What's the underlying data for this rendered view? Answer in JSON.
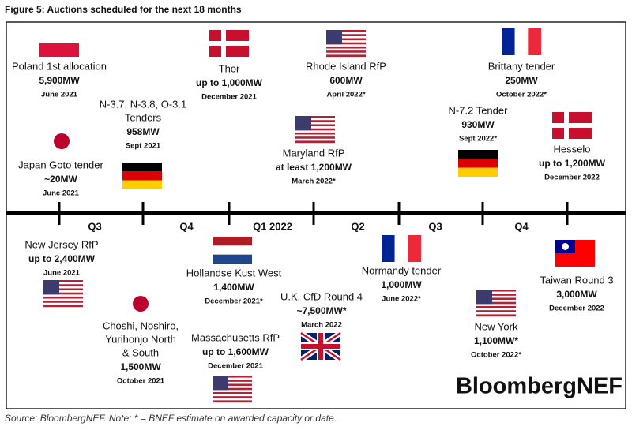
{
  "header": {
    "title": "Figure 5:  Auctions scheduled for the next 18 months"
  },
  "timeline": {
    "quarters": [
      "Q3",
      "Q4",
      "Q1 2022",
      "Q2",
      "Q3",
      "Q4"
    ]
  },
  "auctions": [
    {
      "name": [
        "Poland 1st allocation"
      ],
      "capacity": "5,900MW",
      "date": "June 2021"
    },
    {
      "name": [
        "Japan Goto tender"
      ],
      "capacity": "~20MW",
      "date": "June 2021"
    },
    {
      "name": [
        "N-3.7, N-3.8, O-3.1",
        "Tenders"
      ],
      "capacity": "958MW",
      "date": "Sept 2021"
    },
    {
      "name": [
        "Thor"
      ],
      "capacity": "up to 1,000MW",
      "date": "December 2021"
    },
    {
      "name": [
        "Maryland RfP"
      ],
      "capacity": "at least 1,200MW",
      "date": "March 2022*"
    },
    {
      "name": [
        "Rhode Island RfP"
      ],
      "capacity": "600MW",
      "date": "April 2022*"
    },
    {
      "name": [
        "N-7.2 Tender"
      ],
      "capacity": "930MW",
      "date": "Sept 2022*"
    },
    {
      "name": [
        "Brittany tender"
      ],
      "capacity": "250MW",
      "date": "October 2022*"
    },
    {
      "name": [
        "Hesselo"
      ],
      "capacity": "up to 1,200MW",
      "date": "December 2022"
    },
    {
      "name": [
        "New Jersey RfP"
      ],
      "capacity": "up to 2,400MW",
      "date": "June 2021"
    },
    {
      "name": [
        "Choshi, Noshiro,",
        "Yurihonjo North",
        "& South"
      ],
      "capacity": "1,500MW",
      "date": "October 2021"
    },
    {
      "name": [
        "Hollandse Kust West"
      ],
      "capacity": "1,400MW",
      "date": "December 2021*"
    },
    {
      "name": [
        "Massachusetts RfP"
      ],
      "capacity": "up to 1,600MW",
      "date": "December 2021"
    },
    {
      "name": [
        "U.K. CfD Round 4"
      ],
      "capacity": "~7,500MW*",
      "date": "March 2022"
    },
    {
      "name": [
        "Normandy tender"
      ],
      "capacity": "1,000MW",
      "date": "June 2022*"
    },
    {
      "name": [
        "New York"
      ],
      "capacity": "1,100MW*",
      "date": "October 2022*"
    },
    {
      "name": [
        "Taiwan Round 3"
      ],
      "capacity": "3,000MW",
      "date": "December 2022"
    }
  ],
  "logo": "BloombergNEF",
  "footer": {
    "source": "Source: BloombergNEF. Note: * = BNEF estimate on awarded capacity or date."
  }
}
